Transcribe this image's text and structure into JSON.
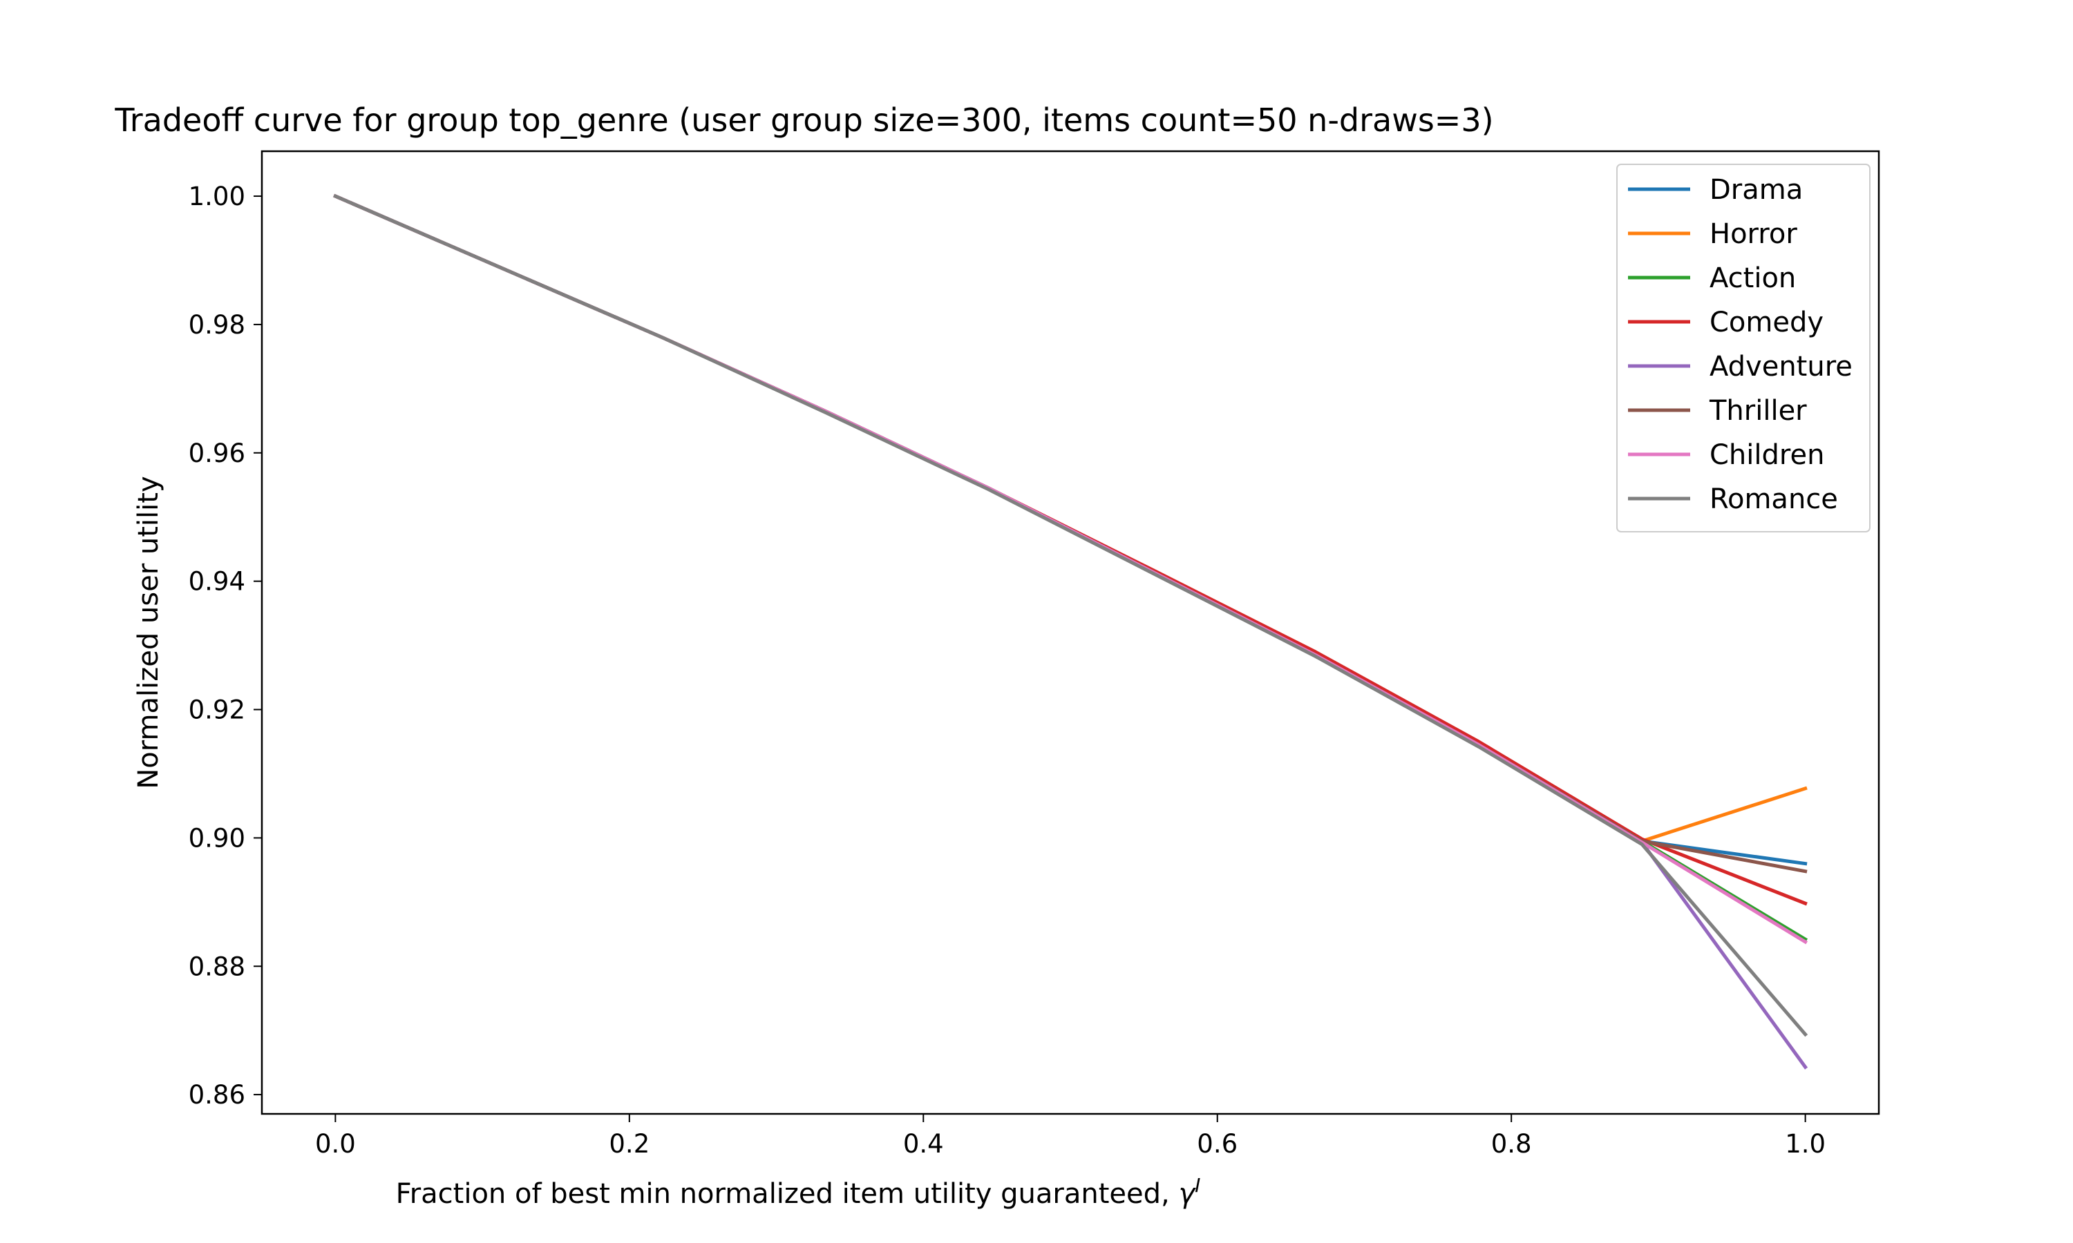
{
  "chart_data": {
    "type": "line",
    "title": "Tradeoff curve for group top_genre (user group size=300, items count=50 n-draws=3)",
    "xlabel": "Fraction of best min normalized item utility guaranteed, ",
    "xlabel_symbol": "γ",
    "xlabel_superscript": "I",
    "ylabel": "Normalized user utility",
    "xlim": [
      -0.05,
      1.05
    ],
    "ylim": [
      0.857,
      1.007
    ],
    "xticks": [
      0.0,
      0.2,
      0.4,
      0.6,
      0.8,
      1.0
    ],
    "xtick_labels": [
      "0.0",
      "0.2",
      "0.4",
      "0.6",
      "0.8",
      "1.0"
    ],
    "yticks": [
      0.86,
      0.88,
      0.9,
      0.92,
      0.94,
      0.96,
      0.98,
      1.0
    ],
    "ytick_labels": [
      "0.86",
      "0.88",
      "0.90",
      "0.92",
      "0.94",
      "0.96",
      "0.98",
      "1.00"
    ],
    "grid": false,
    "legend_position": "top-right",
    "x": [
      0.0,
      0.1111,
      0.2222,
      0.3333,
      0.4444,
      0.5556,
      0.6667,
      0.7778,
      0.8889,
      1.0
    ],
    "series": [
      {
        "name": "Drama",
        "color": "#1f77b4",
        "values": [
          1.0,
          0.989,
          0.978,
          0.9665,
          0.9545,
          0.9415,
          0.9285,
          0.9145,
          0.8995,
          0.896
        ]
      },
      {
        "name": "Horror",
        "color": "#ff7f0e",
        "values": [
          1.0,
          0.989,
          0.978,
          0.9665,
          0.9545,
          0.9415,
          0.9285,
          0.9145,
          0.8995,
          0.9077
        ]
      },
      {
        "name": "Action",
        "color": "#2ca02c",
        "values": [
          1.0,
          0.989,
          0.978,
          0.9665,
          0.9545,
          0.9415,
          0.9285,
          0.9145,
          0.8995,
          0.8842
        ]
      },
      {
        "name": "Comedy",
        "color": "#d62728",
        "values": [
          1.0,
          0.989,
          0.978,
          0.9665,
          0.9545,
          0.9418,
          0.929,
          0.915,
          0.8998,
          0.8898
        ]
      },
      {
        "name": "Adventure",
        "color": "#9467bd",
        "values": [
          1.0,
          0.989,
          0.978,
          0.9665,
          0.9545,
          0.9415,
          0.9285,
          0.9145,
          0.8993,
          0.8643
        ]
      },
      {
        "name": "Thriller",
        "color": "#8c564b",
        "values": [
          1.0,
          0.989,
          0.978,
          0.9665,
          0.9545,
          0.9415,
          0.9285,
          0.9145,
          0.8995,
          0.8948
        ]
      },
      {
        "name": "Children",
        "color": "#e377c2",
        "values": [
          1.0,
          0.989,
          0.978,
          0.9665,
          0.9545,
          0.9415,
          0.9285,
          0.9145,
          0.8993,
          0.8838
        ]
      },
      {
        "name": "Romance",
        "color": "#7f7f7f",
        "values": [
          1.0,
          0.989,
          0.978,
          0.9663,
          0.9543,
          0.9413,
          0.9283,
          0.9142,
          0.899,
          0.8694
        ]
      }
    ]
  }
}
